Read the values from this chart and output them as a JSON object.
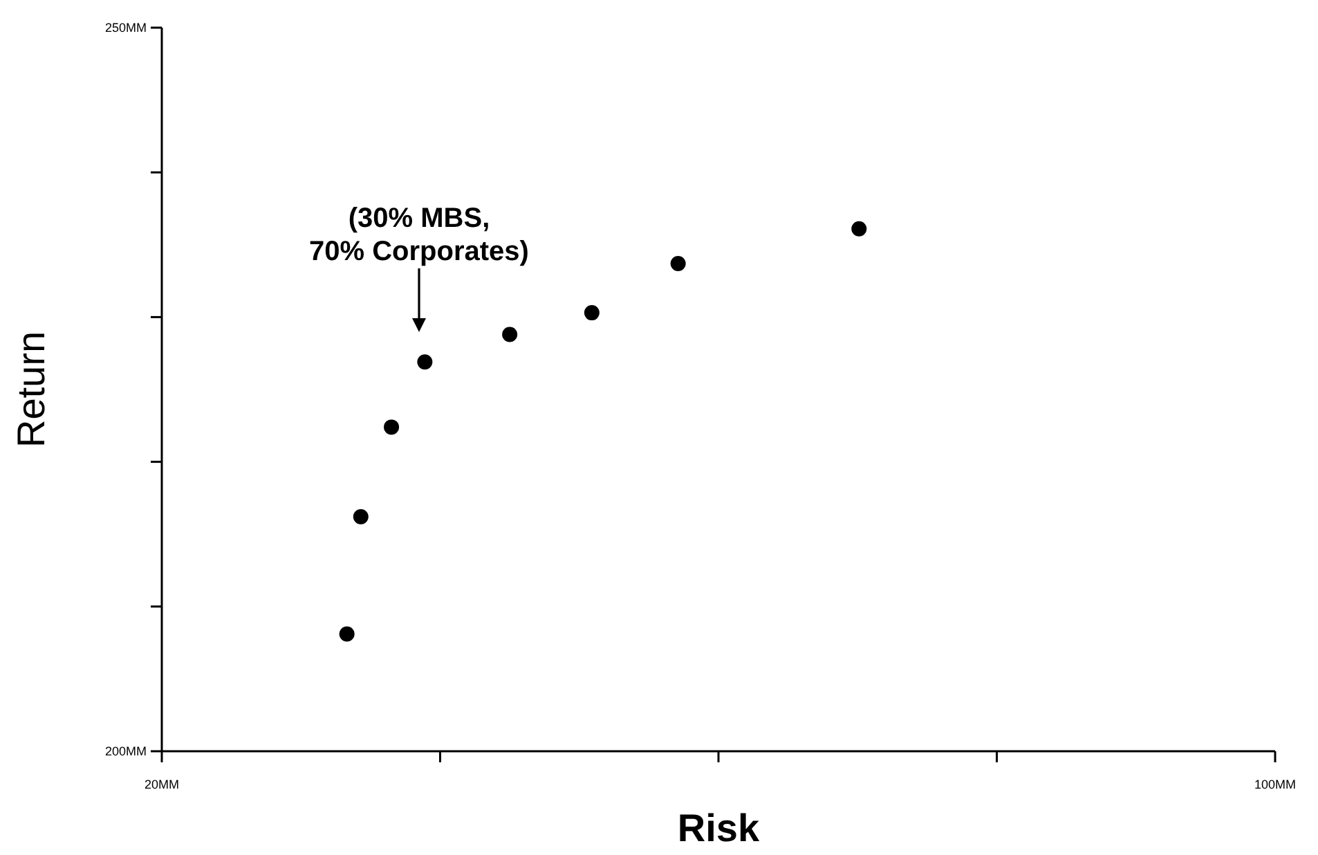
{
  "chart_data": {
    "type": "scatter",
    "xlabel": "Risk",
    "ylabel": "Return",
    "x": [
      33.3,
      34.3,
      36.5,
      38.9,
      45.0,
      50.9,
      57.1,
      70.1
    ],
    "series": [
      {
        "color": "#000000",
        "values": [
          208.1,
          216.2,
          222.4,
          226.9,
          228.8,
          230.3,
          233.7,
          236.1
        ]
      }
    ],
    "xlim": [
      20,
      100
    ],
    "ylim": [
      200,
      250
    ],
    "xticks": [
      {
        "value": 20,
        "label": "20MM"
      },
      {
        "value": 40,
        "label": null
      },
      {
        "value": 60,
        "label": null
      },
      {
        "value": 80,
        "label": null
      },
      {
        "value": 100,
        "label": "100MM"
      }
    ],
    "yticks": [
      {
        "value": 200,
        "label": "200MM"
      },
      {
        "value": 210,
        "label": null
      },
      {
        "value": 220,
        "label": null
      },
      {
        "value": 230,
        "label": null
      },
      {
        "value": 240,
        "label": null
      },
      {
        "value": 250,
        "label": "250MM"
      }
    ],
    "annotations": [
      "(30% MBS,\n70% Corporates)"
    ],
    "marker": "circle"
  }
}
